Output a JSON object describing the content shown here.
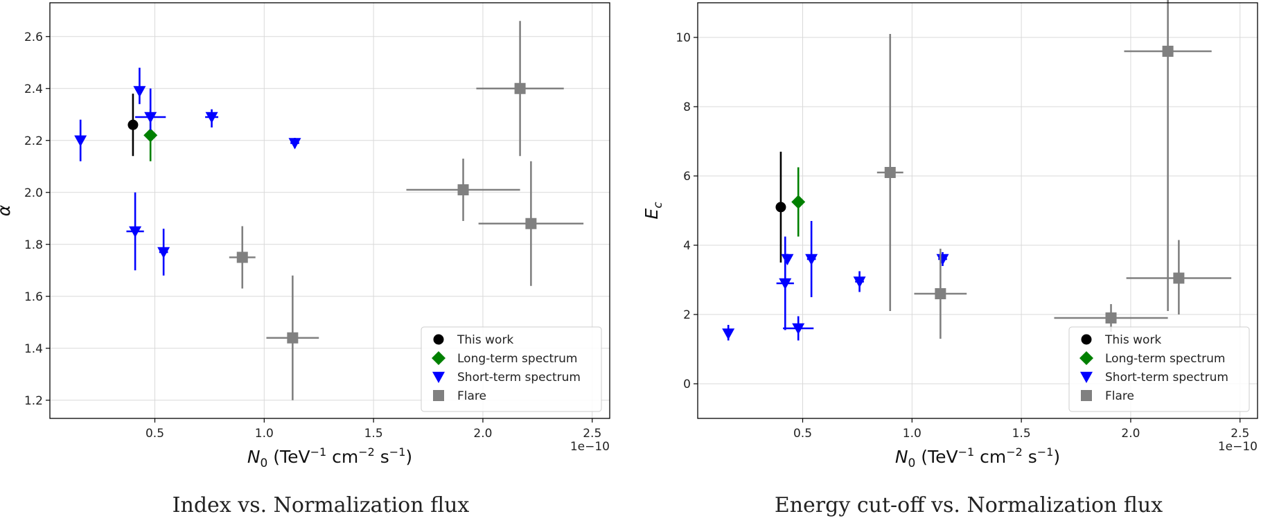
{
  "chart_data": [
    {
      "type": "scatter",
      "caption": "Index vs. Normalization flux",
      "xlabel_main": "N",
      "xlabel_sub": "0",
      "xlabel_rest": " (TeV",
      "xlabel_full": "N0 (TeV^-1 cm^-2 s^-1)",
      "ylabel": "α",
      "offset_text": "1e−10",
      "xlim": [
        0.02,
        2.58
      ],
      "ylim": [
        1.13,
        2.73
      ],
      "xticks": [
        0.5,
        1.0,
        1.5,
        2.0,
        2.5
      ],
      "xtick_labels": [
        "0.5",
        "1.0",
        "1.5",
        "2.0",
        "2.5"
      ],
      "yticks": [
        1.2,
        1.4,
        1.6,
        1.8,
        2.0,
        2.2,
        2.4,
        2.6
      ],
      "ytick_labels": [
        "1.2",
        "1.4",
        "1.6",
        "1.8",
        "2.0",
        "2.2",
        "2.4",
        "2.6"
      ],
      "grid": true,
      "legend_position": "bottom-right",
      "series": [
        {
          "name": "This work",
          "color": "#000000",
          "marker": "circle",
          "points": [
            {
              "x": 0.4,
              "y": 2.26,
              "xerr": [
                0.0,
                0.0
              ],
              "yerr": [
                0.12,
                0.12
              ]
            }
          ]
        },
        {
          "name": "Long-term spectrum",
          "color": "#008000",
          "marker": "diamond",
          "points": [
            {
              "x": 0.48,
              "y": 2.22,
              "xerr": [
                0.0,
                0.0
              ],
              "yerr": [
                0.1,
                0.1
              ]
            }
          ]
        },
        {
          "name": "Short-term spectrum",
          "color": "#0000ff",
          "marker": "triangle-down",
          "points": [
            {
              "x": 0.16,
              "y": 2.2,
              "xerr": [
                0.0,
                0.0
              ],
              "yerr": [
                0.08,
                0.08
              ]
            },
            {
              "x": 0.43,
              "y": 2.39,
              "xerr": [
                0.0,
                0.0
              ],
              "yerr": [
                0.05,
                0.09
              ]
            },
            {
              "x": 0.48,
              "y": 2.29,
              "xerr": [
                0.07,
                0.07
              ],
              "yerr": [
                0.05,
                0.11
              ]
            },
            {
              "x": 0.76,
              "y": 2.29,
              "xerr": [
                0.03,
                0.03
              ],
              "yerr": [
                0.04,
                0.03
              ]
            },
            {
              "x": 1.14,
              "y": 2.19,
              "xerr": [
                0.02,
                0.02
              ],
              "yerr": [
                0.02,
                0.02
              ]
            },
            {
              "x": 0.41,
              "y": 1.85,
              "xerr": [
                0.04,
                0.04
              ],
              "yerr": [
                0.15,
                0.15
              ]
            },
            {
              "x": 0.54,
              "y": 1.77,
              "xerr": [
                0.02,
                0.02
              ],
              "yerr": [
                0.09,
                0.09
              ]
            }
          ]
        },
        {
          "name": "Flare",
          "color": "#808080",
          "marker": "square",
          "points": [
            {
              "x": 2.17,
              "y": 2.4,
              "xerr": [
                0.2,
                0.2
              ],
              "yerr": [
                0.26,
                0.26
              ]
            },
            {
              "x": 1.91,
              "y": 2.01,
              "xerr": [
                0.26,
                0.26
              ],
              "yerr": [
                0.12,
                0.12
              ]
            },
            {
              "x": 2.22,
              "y": 1.88,
              "xerr": [
                0.24,
                0.24
              ],
              "yerr": [
                0.24,
                0.24
              ]
            },
            {
              "x": 0.9,
              "y": 1.75,
              "xerr": [
                0.06,
                0.06
              ],
              "yerr": [
                0.12,
                0.12
              ]
            },
            {
              "x": 1.13,
              "y": 1.44,
              "xerr": [
                0.12,
                0.12
              ],
              "yerr": [
                0.24,
                0.24
              ]
            }
          ]
        }
      ]
    },
    {
      "type": "scatter",
      "caption": "Energy cut-off vs. Normalization flux",
      "xlabel_main": "N",
      "xlabel_sub": "0",
      "xlabel_rest": " (TeV",
      "xlabel_full": "N0 (TeV^-1 cm^-2 s^-1)",
      "ylabel": "E",
      "ylabel_sub": "c",
      "offset_text": "1e−10",
      "xlim": [
        0.02,
        2.58
      ],
      "ylim": [
        -1.0,
        11.0
      ],
      "xticks": [
        0.5,
        1.0,
        1.5,
        2.0,
        2.5
      ],
      "xtick_labels": [
        "0.5",
        "1.0",
        "1.5",
        "2.0",
        "2.5"
      ],
      "yticks": [
        0,
        2,
        4,
        6,
        8,
        10
      ],
      "ytick_labels": [
        "0",
        "2",
        "4",
        "6",
        "8",
        "10"
      ],
      "grid": true,
      "legend_position": "bottom-right",
      "series": [
        {
          "name": "This work",
          "color": "#000000",
          "marker": "circle",
          "points": [
            {
              "x": 0.4,
              "y": 5.1,
              "xerr": [
                0.0,
                0.0
              ],
              "yerr": [
                1.6,
                1.6
              ]
            }
          ]
        },
        {
          "name": "Long-term spectrum",
          "color": "#008000",
          "marker": "diamond",
          "points": [
            {
              "x": 0.48,
              "y": 5.25,
              "xerr": [
                0.0,
                0.0
              ],
              "yerr": [
                1.0,
                1.0
              ]
            }
          ]
        },
        {
          "name": "Short-term spectrum",
          "color": "#0000ff",
          "marker": "triangle-down",
          "points": [
            {
              "x": 0.16,
              "y": 1.45,
              "xerr": [
                0.0,
                0.0
              ],
              "yerr": [
                0.2,
                0.25
              ]
            },
            {
              "x": 0.42,
              "y": 2.9,
              "xerr": [
                0.04,
                0.04
              ],
              "yerr": [
                1.35,
                1.35
              ]
            },
            {
              "x": 0.43,
              "y": 3.6,
              "xerr": [
                0.0,
                0.0
              ],
              "yerr": [
                0.15,
                0.15
              ]
            },
            {
              "x": 0.48,
              "y": 1.6,
              "xerr": [
                0.07,
                0.07
              ],
              "yerr": [
                0.35,
                0.35
              ]
            },
            {
              "x": 0.54,
              "y": 3.6,
              "xerr": [
                0.02,
                0.02
              ],
              "yerr": [
                1.1,
                1.1
              ]
            },
            {
              "x": 0.76,
              "y": 2.95,
              "xerr": [
                0.02,
                0.02
              ],
              "yerr": [
                0.3,
                0.3
              ]
            },
            {
              "x": 1.14,
              "y": 3.6,
              "xerr": [
                0.02,
                0.02
              ],
              "yerr": [
                0.2,
                0.2
              ]
            }
          ]
        },
        {
          "name": "Flare",
          "color": "#808080",
          "marker": "square",
          "points": [
            {
              "x": 2.17,
              "y": 9.6,
              "xerr": [
                0.2,
                0.2
              ],
              "yerr": [
                7.5,
                1.6
              ]
            },
            {
              "x": 0.9,
              "y": 6.1,
              "xerr": [
                0.06,
                0.06
              ],
              "yerr": [
                4.0,
                4.0
              ]
            },
            {
              "x": 1.13,
              "y": 2.6,
              "xerr": [
                0.12,
                0.12
              ],
              "yerr": [
                1.3,
                1.3
              ]
            },
            {
              "x": 1.91,
              "y": 1.9,
              "xerr": [
                0.26,
                0.26
              ],
              "yerr": [
                0.4,
                0.4
              ]
            },
            {
              "x": 2.22,
              "y": 3.05,
              "xerr": [
                0.24,
                0.24
              ],
              "yerr": [
                1.05,
                1.1
              ]
            }
          ]
        }
      ]
    }
  ]
}
